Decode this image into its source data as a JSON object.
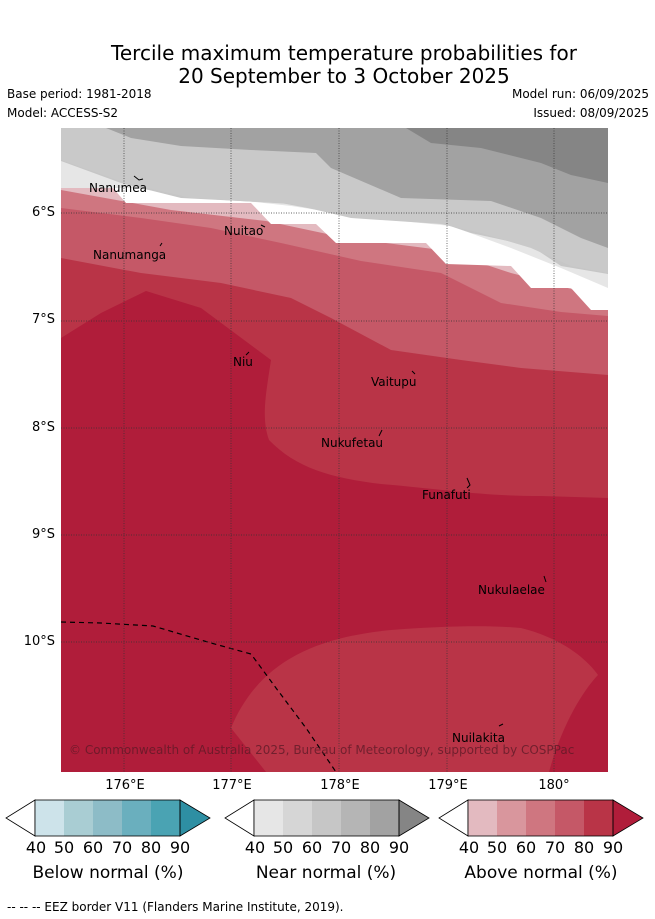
{
  "title": {
    "line1": "Tercile maximum temperature probabilities for",
    "line2": "20 September to 3 October 2025"
  },
  "meta": {
    "base_period": "Base period: 1981-2018",
    "model": "Model: ACCESS-S2",
    "model_run": "Model run: 06/09/2025",
    "issued": "Issued: 08/09/2025"
  },
  "axes": {
    "lat_labels": [
      "6°S",
      "7°S",
      "8°S",
      "9°S",
      "10°S"
    ],
    "lon_labels": [
      "176°E",
      "177°E",
      "178°E",
      "179°E",
      "180°"
    ]
  },
  "places": [
    "Nanumea",
    "Nuitao",
    "Nanumanga",
    "Niu",
    "Vaitupu",
    "Nukufetau",
    "Funafuti",
    "Nukulaelae",
    "Nuilakita"
  ],
  "copyright": "© Commonwealth of Australia 2025, Bureau of Meteorology, supported by COSPPac",
  "colorbars": [
    {
      "title": "Below normal (%)",
      "colors": [
        "#ffffff",
        "#cde3ea",
        "#a9cdd3",
        "#8dbcc7",
        "#6aafbe",
        "#4aa3b3",
        "#2e8fa3"
      ]
    },
    {
      "title": "Near normal (%)",
      "colors": [
        "#ffffff",
        "#e6e6e6",
        "#d6d6d6",
        "#c6c6c6",
        "#b5b5b5",
        "#a2a2a2",
        "#858585"
      ]
    },
    {
      "title": "Above normal (%)",
      "colors": [
        "#ffffff",
        "#e3bac0",
        "#d9969d",
        "#cf7680",
        "#c55867",
        "#b93447",
        "#b01d3a"
      ]
    }
  ],
  "colorbar_ticks": [
    "40",
    "50",
    "60",
    "70",
    "80",
    "90"
  ],
  "footer": "-- -- -- EEZ border V11 (Flanders Marine Institute, 2019)."
}
